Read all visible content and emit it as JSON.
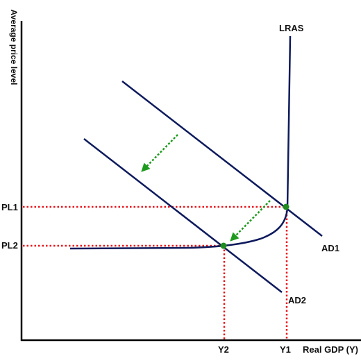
{
  "axes": {
    "y_label": "Average price level",
    "x_label": "Real GDP (Y)"
  },
  "price_levels": {
    "pl1": "PL1",
    "pl2": "PL2"
  },
  "output_levels": {
    "y1": "Y1",
    "y2": "Y2"
  },
  "curves": {
    "lras": "LRAS",
    "ad1": "AD1",
    "ad2": "AD2"
  },
  "colors": {
    "axis": "#000000",
    "curve": "#0d1a5c",
    "guide": "#e8141b",
    "shift_arrow": "#1e9b1e",
    "equilibrium_point": "#1e8c1e"
  }
}
